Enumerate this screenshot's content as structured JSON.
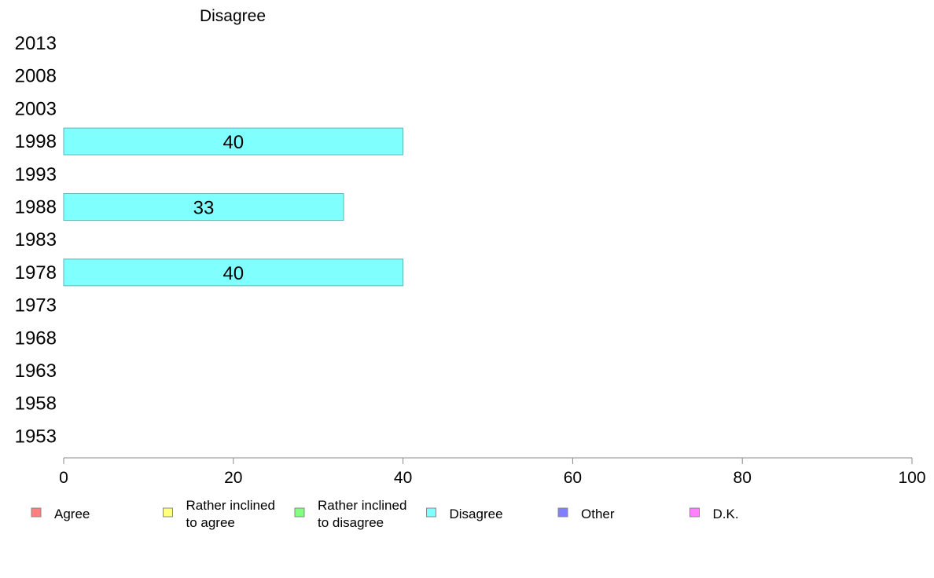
{
  "chart_data": {
    "type": "bar",
    "orientation": "horizontal",
    "title": "Disagree",
    "xlabel": "",
    "ylabel": "",
    "xlim": [
      0,
      100
    ],
    "x_ticks": [
      "0",
      "20",
      "40",
      "60",
      "80",
      "100"
    ],
    "categories": [
      "2013",
      "2008",
      "2003",
      "1998",
      "1993",
      "1988",
      "1983",
      "1978",
      "1973",
      "1968",
      "1963",
      "1958",
      "1953"
    ],
    "series": [
      {
        "name": "Disagree",
        "color": "#80ffff",
        "values": [
          null,
          null,
          null,
          40,
          null,
          33,
          null,
          40,
          null,
          null,
          null,
          null,
          null
        ],
        "labels": [
          "",
          "",
          "",
          "40",
          "",
          "33",
          "",
          "40",
          "",
          "",
          "",
          "",
          ""
        ]
      }
    ],
    "grid": false,
    "legend_position": "bottom",
    "legend": [
      {
        "label_lines": [
          "Agree"
        ],
        "color": "#ff8080"
      },
      {
        "label_lines": [
          "Rather inclined",
          "to agree"
        ],
        "color": "#ffff80"
      },
      {
        "label_lines": [
          "Rather inclined",
          "to disagree"
        ],
        "color": "#80ff80"
      },
      {
        "label_lines": [
          "Disagree"
        ],
        "color": "#80ffff"
      },
      {
        "label_lines": [
          "Other"
        ],
        "color": "#8080ff"
      },
      {
        "label_lines": [
          "D.K."
        ],
        "color": "#ff80ff"
      }
    ]
  }
}
